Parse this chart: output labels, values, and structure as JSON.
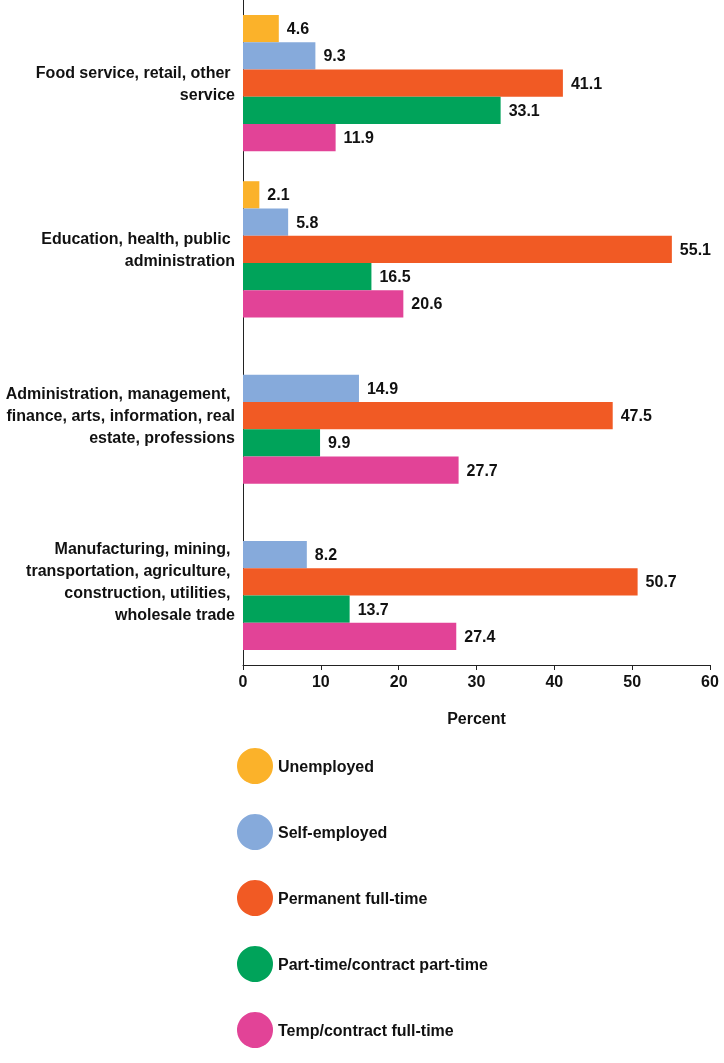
{
  "chart_data": {
    "type": "bar",
    "orientation": "horizontal",
    "xlabel": "Percent",
    "categories": [
      "Food service, retail, other service",
      "Education, health, public administration",
      "Administration, management, finance, arts, information, real estate, professions",
      "Manufacturing, mining, transportation, agriculture, construction, utilities, wholesale trade"
    ],
    "series": [
      {
        "name": "Unemployed",
        "color": "#fbb22a",
        "values": [
          4.6,
          2.1,
          null,
          null
        ]
      },
      {
        "name": "Self-employed",
        "color": "#86aadb",
        "values": [
          9.3,
          5.8,
          14.9,
          8.2
        ]
      },
      {
        "name": "Permanent full-time",
        "color": "#f15a24",
        "values": [
          41.1,
          55.1,
          47.5,
          50.7
        ]
      },
      {
        "name": "Part-time/contract part-time",
        "color": "#00a35a",
        "values": [
          33.1,
          16.5,
          9.9,
          13.7
        ]
      },
      {
        "name": "Temp/contract full-time",
        "color": "#e24397",
        "values": [
          11.9,
          20.6,
          27.7,
          27.4
        ]
      }
    ],
    "xlim": [
      0,
      60
    ],
    "xticks": [
      0,
      10,
      20,
      30,
      40,
      50,
      60
    ],
    "data_labels": true,
    "grid": false,
    "legend": "bottom"
  }
}
